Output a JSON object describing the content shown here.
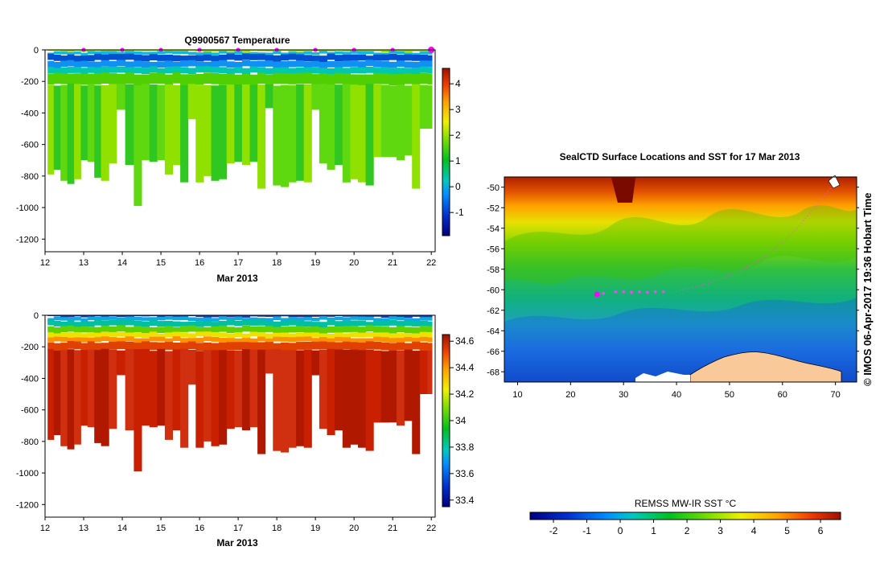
{
  "chart_data": [
    {
      "id": "temperature",
      "type": "heatmap",
      "title": "Q9900567  Temperature",
      "xlabel": "Mar 2013",
      "ylabel": "",
      "xlim": [
        12,
        22.1
      ],
      "ylim": [
        -1280,
        0
      ],
      "x_ticks": [
        "12",
        "13",
        "14",
        "15",
        "16",
        "17",
        "18",
        "19",
        "20",
        "21",
        "22"
      ],
      "y_ticks": [
        "0",
        "-200",
        "-400",
        "-600",
        "-800",
        "-1000",
        "-1200"
      ],
      "colorbar": {
        "range": [
          -1.9,
          4.6
        ],
        "ticks": [
          "-1",
          "0",
          "1",
          "2",
          "3",
          "4"
        ]
      },
      "profile_dates": [
        12.15,
        12.3,
        12.5,
        12.65,
        12.85,
        13.0,
        13.2,
        13.35,
        13.55,
        13.75,
        13.95,
        14.2,
        14.4,
        14.6,
        14.8,
        15.0,
        15.2,
        15.4,
        15.6,
        15.8,
        16.0,
        16.2,
        16.4,
        16.6,
        16.8,
        17.0,
        17.2,
        17.4,
        17.6,
        17.8,
        18.0,
        18.2,
        18.4,
        18.6,
        18.8,
        19.0,
        19.2,
        19.4,
        19.6,
        19.8,
        20.0,
        20.2,
        20.4,
        20.6,
        20.8,
        21.0,
        21.2,
        21.4,
        21.6,
        21.8,
        22.0
      ],
      "profile_max_depths": [
        790,
        760,
        830,
        850,
        820,
        700,
        710,
        810,
        830,
        720,
        380,
        730,
        990,
        700,
        710,
        700,
        790,
        730,
        840,
        440,
        840,
        800,
        830,
        820,
        720,
        710,
        730,
        710,
        880,
        370,
        860,
        870,
        840,
        830,
        840,
        380,
        720,
        760,
        730,
        840,
        820,
        840,
        860,
        680,
        680,
        680,
        700,
        670,
        880,
        500,
        500
      ],
      "surface_markers_x": [
        13,
        14,
        15,
        16,
        17,
        18,
        19,
        20,
        21,
        22
      ]
    },
    {
      "id": "salinity",
      "type": "heatmap",
      "title": "",
      "xlabel": "Mar 2013",
      "ylabel": "",
      "xlim": [
        12,
        22.1
      ],
      "ylim": [
        -1280,
        0
      ],
      "x_ticks": [
        "12",
        "13",
        "14",
        "15",
        "16",
        "17",
        "18",
        "19",
        "20",
        "21",
        "22"
      ],
      "y_ticks": [
        "0",
        "-200",
        "-400",
        "-600",
        "-800",
        "-1000",
        "-1200"
      ],
      "colorbar": {
        "range": [
          33.35,
          34.65
        ],
        "ticks": [
          "33.4",
          "33.6",
          "33.8",
          "34",
          "34.2",
          "34.4",
          "34.6"
        ]
      }
    },
    {
      "id": "sst_map",
      "type": "heatmap",
      "title": "SealCTD Surface Locations and SST for 17 Mar 2013",
      "xlabel": "",
      "ylabel": "",
      "xlim": [
        7.5,
        74
      ],
      "ylim": [
        -69,
        -49
      ],
      "x_ticks": [
        "10",
        "20",
        "30",
        "40",
        "50",
        "60",
        "70"
      ],
      "y_ticks": [
        "-50",
        "-52",
        "-54",
        "-56",
        "-58",
        "-60",
        "-62",
        "-64",
        "-66",
        "-68"
      ],
      "track": {
        "lon": [
          25.3,
          26.2,
          28.5,
          30.0,
          31.5,
          33.0,
          34.5,
          36.0,
          37.5
        ],
        "lat": [
          -60.4,
          -60.35,
          -60.2,
          -60.2,
          -60.25,
          -60.2,
          -60.25,
          -60.2,
          -60.2
        ]
      },
      "current_position": {
        "lon": 25.0,
        "lat": -60.45
      },
      "colorbar": {
        "label": "REMSS MW-IR SST °C",
        "range": [
          -2.7,
          6.6
        ],
        "ticks": [
          "-2",
          "-1",
          "0",
          "1",
          "2",
          "3",
          "4",
          "5",
          "6"
        ]
      }
    }
  ],
  "credit": "© IMOS 06-Apr-2017 19:36 Hobart Time"
}
